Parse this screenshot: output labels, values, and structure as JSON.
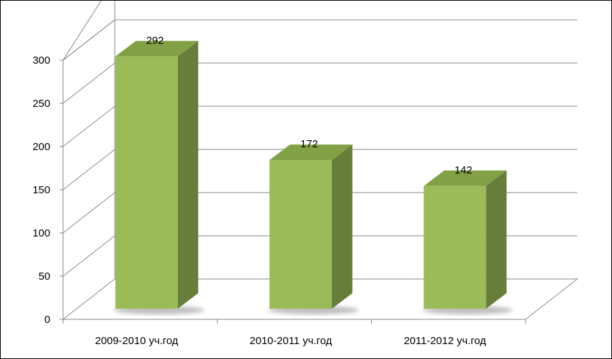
{
  "chart_data": {
    "type": "bar",
    "style": "3d-column",
    "categories": [
      "2009-2010 уч.год",
      "2010-2011 уч.год",
      "2011-2012 уч.год"
    ],
    "values": [
      292,
      172,
      142
    ],
    "data_labels": [
      "292",
      "172",
      "142"
    ],
    "ylim": [
      0,
      300
    ],
    "yticks": [
      "0",
      "50",
      "100",
      "150",
      "200",
      "250",
      "300"
    ],
    "grid": true,
    "legend": "none",
    "colors": {
      "front": "#9bbb59",
      "side": "#677d3a",
      "top": "#82a046",
      "grid": "#868686"
    }
  }
}
